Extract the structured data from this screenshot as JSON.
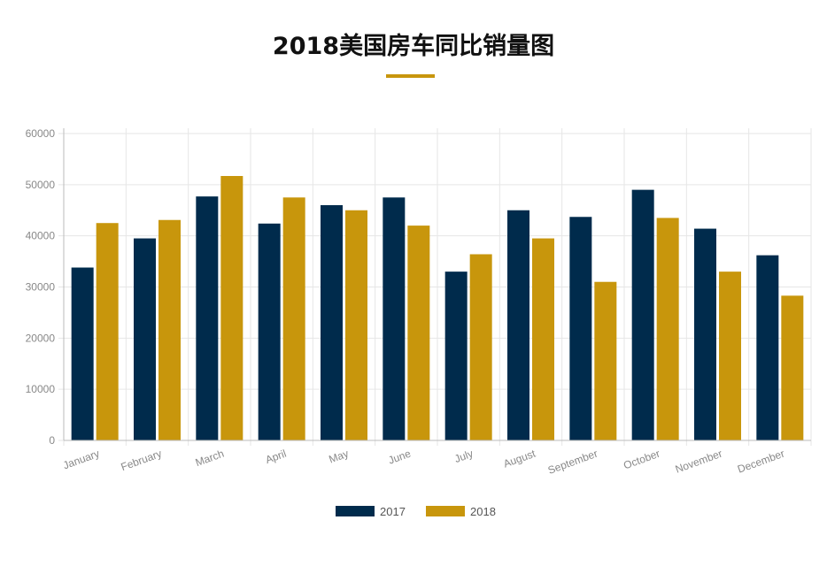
{
  "chart_data": {
    "type": "bar",
    "title": "2018美国房车同比销量图",
    "categories": [
      "January",
      "February",
      "March",
      "April",
      "May",
      "June",
      "July",
      "August",
      "September",
      "October",
      "November",
      "December"
    ],
    "series": [
      {
        "name": "2017",
        "color": "#002B4C",
        "values": [
          33800,
          39500,
          47700,
          42400,
          46000,
          47500,
          33000,
          45000,
          43700,
          49000,
          41400,
          36200
        ]
      },
      {
        "name": "2018",
        "color": "#C8960C",
        "values": [
          42500,
          43100,
          51700,
          47500,
          45000,
          42000,
          36400,
          39500,
          31000,
          43500,
          33000,
          28300
        ]
      }
    ],
    "ylim": [
      0,
      60000
    ],
    "yticks": [
      0,
      10000,
      20000,
      30000,
      40000,
      50000,
      60000
    ],
    "xlabel": "",
    "ylabel": "",
    "grid": true,
    "legend_position": "bottom-center"
  }
}
